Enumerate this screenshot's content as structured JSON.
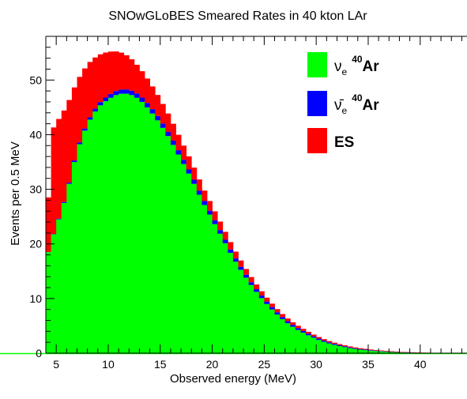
{
  "chart_data": {
    "type": "area",
    "stacked": true,
    "histogram": true,
    "title": "SNOwGLoBES Smeared Rates in 40 kton LAr",
    "xlabel": "Observed energy (MeV)",
    "ylabel": "Events per 0.5 MeV",
    "xlim": [
      4.0,
      44.5
    ],
    "ylim": [
      0,
      58
    ],
    "bin_width": 0.5,
    "x_ticks": [
      "5",
      "10",
      "15",
      "20",
      "25",
      "30",
      "35",
      "40"
    ],
    "y_ticks": [
      "0",
      "10",
      "20",
      "30",
      "40",
      "50"
    ],
    "grid": false,
    "legend_position": "top-right",
    "series": [
      {
        "name": "ν_e 40Ar",
        "color": "#00ff00",
        "points": [
          [
            4,
            16.5
          ],
          [
            4.5,
            20.5
          ],
          [
            5,
            23
          ],
          [
            6,
            29
          ],
          [
            7,
            37
          ],
          [
            8,
            42
          ],
          [
            9,
            45
          ],
          [
            10,
            46.5
          ],
          [
            11,
            47.5
          ],
          [
            12,
            47.5
          ],
          [
            13,
            46.5
          ],
          [
            14,
            44.5
          ],
          [
            15,
            42
          ],
          [
            16,
            39
          ],
          [
            17,
            35.5
          ],
          [
            18,
            32
          ],
          [
            19,
            28
          ],
          [
            20,
            24.5
          ],
          [
            21,
            21
          ],
          [
            22,
            17.5
          ],
          [
            23,
            14.5
          ],
          [
            24,
            11.8
          ],
          [
            25,
            9.5
          ],
          [
            26,
            7.5
          ],
          [
            27,
            5.8
          ],
          [
            28,
            4.5
          ],
          [
            29,
            3.5
          ],
          [
            30,
            2.6
          ],
          [
            31,
            1.9
          ],
          [
            32,
            1.4
          ],
          [
            33,
            1.0
          ],
          [
            34,
            0.7
          ],
          [
            35,
            0.5
          ],
          [
            36,
            0.35
          ],
          [
            37,
            0.25
          ],
          [
            38,
            0.15
          ],
          [
            39,
            0.1
          ],
          [
            40,
            0.05
          ],
          [
            42,
            0.02
          ],
          [
            44.5,
            0
          ]
        ]
      },
      {
        "name": "ν̄_e 40Ar",
        "color": "#0000ff",
        "points": [
          [
            4,
            0
          ],
          [
            6,
            0.2
          ],
          [
            8,
            0.4
          ],
          [
            10,
            0.7
          ],
          [
            12,
            0.8
          ],
          [
            14,
            0.8
          ],
          [
            16,
            0.8
          ],
          [
            18,
            0.75
          ],
          [
            20,
            0.7
          ],
          [
            22,
            0.6
          ],
          [
            24,
            0.5
          ],
          [
            26,
            0.42
          ],
          [
            28,
            0.35
          ],
          [
            30,
            0.25
          ],
          [
            32,
            0.18
          ],
          [
            34,
            0.12
          ],
          [
            36,
            0.08
          ],
          [
            38,
            0.04
          ],
          [
            40,
            0.02
          ],
          [
            44.5,
            0
          ]
        ]
      },
      {
        "name": "ES",
        "color": "#ff0000",
        "points": [
          [
            4,
            0
          ],
          [
            4.5,
            20
          ],
          [
            5,
            19
          ],
          [
            6,
            16
          ],
          [
            7,
            12.5
          ],
          [
            8,
            10.5
          ],
          [
            9,
            9
          ],
          [
            10,
            8
          ],
          [
            11,
            7
          ],
          [
            12,
            6
          ],
          [
            13,
            5
          ],
          [
            14,
            4.3
          ],
          [
            15,
            3.7
          ],
          [
            16,
            3.2
          ],
          [
            17,
            2.7
          ],
          [
            18,
            2.3
          ],
          [
            19,
            2.0
          ],
          [
            20,
            1.7
          ],
          [
            21,
            1.5
          ],
          [
            22,
            1.3
          ],
          [
            23,
            1.1
          ],
          [
            24,
            0.9
          ],
          [
            25,
            0.75
          ],
          [
            26,
            0.6
          ],
          [
            28,
            0.45
          ],
          [
            30,
            0.3
          ],
          [
            32,
            0.2
          ],
          [
            34,
            0.15
          ],
          [
            36,
            0.1
          ],
          [
            38,
            0.07
          ],
          [
            40,
            0.04
          ],
          [
            42,
            0.02
          ],
          [
            44.5,
            0
          ]
        ]
      }
    ]
  }
}
